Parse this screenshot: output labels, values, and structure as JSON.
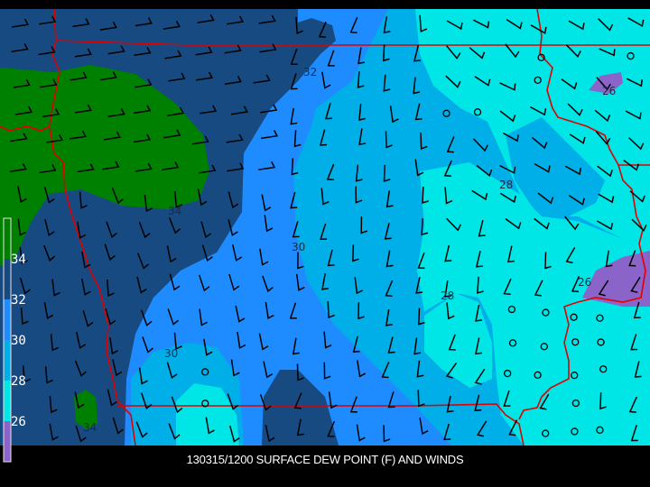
{
  "title": "130315/1200 SURFACE DEW POINT (F) AND WINDS",
  "legend": {
    "ticks": [
      "34",
      "32",
      "30",
      "28",
      "26"
    ],
    "colors": {
      "above_34": "#008000",
      "32_34": "#164a80",
      "30_32": "#1e8cff",
      "28_30": "#00aee8",
      "26_28": "#00e6e6",
      "below_26": "#8a64c8"
    }
  },
  "contour_labels": [
    "32",
    "34",
    "30",
    "30",
    "28",
    "28",
    "26",
    "26",
    "34"
  ],
  "colors": {
    "state_lines": "#e00000",
    "barbs": "#000000",
    "background": "#000000"
  }
}
